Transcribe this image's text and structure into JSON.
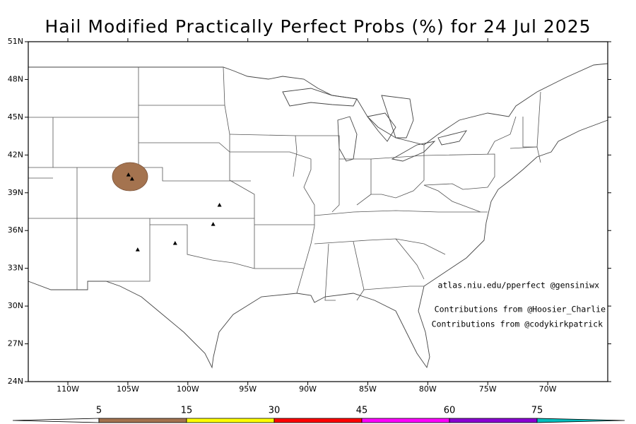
{
  "title": "Hail Modified Practically Perfect Probs (%) for 24 Jul 2025",
  "credits": [
    "atlas.niu.edu/pperfect @gensiniwx",
    "Contributions from @Hoosier_Charlie",
    "Contributions from @codykirkpatrick"
  ],
  "map": {
    "xlim": [
      -113.3,
      -65
    ],
    "ylim": [
      24,
      51
    ],
    "xticks": [
      {
        "value": -110,
        "label": "110W"
      },
      {
        "value": -105,
        "label": "105W"
      },
      {
        "value": -100,
        "label": "100W"
      },
      {
        "value": -95,
        "label": "95W"
      },
      {
        "value": -90,
        "label": "90W"
      },
      {
        "value": -85,
        "label": "85W"
      },
      {
        "value": -80,
        "label": "80W"
      },
      {
        "value": -75,
        "label": "75W"
      },
      {
        "value": -70,
        "label": "70W"
      }
    ],
    "yticks": [
      {
        "value": 24,
        "label": "24N"
      },
      {
        "value": 27,
        "label": "27N"
      },
      {
        "value": 30,
        "label": "30N"
      },
      {
        "value": 33,
        "label": "33N"
      },
      {
        "value": 36,
        "label": "36N"
      },
      {
        "value": 39,
        "label": "39N"
      },
      {
        "value": 42,
        "label": "42N"
      },
      {
        "value": 45,
        "label": "45N"
      },
      {
        "value": 48,
        "label": "48N"
      },
      {
        "value": 51,
        "label": "51N"
      }
    ],
    "reports": {
      "lon": [
        -104.95,
        -104.65,
        -97.36,
        -97.89,
        -104.18,
        -101.06
      ],
      "lat": [
        40.44,
        40.11,
        38.03,
        36.51,
        34.49,
        35.0
      ]
    }
  },
  "colorbar": {
    "levels": [
      5,
      15,
      30,
      45,
      60,
      75
    ],
    "colors": [
      "#ffffff",
      "#a4734f",
      "#ffff00",
      "#ff0000",
      "#ff00ff",
      "#8a00d4",
      "#00c0c0"
    ]
  }
}
